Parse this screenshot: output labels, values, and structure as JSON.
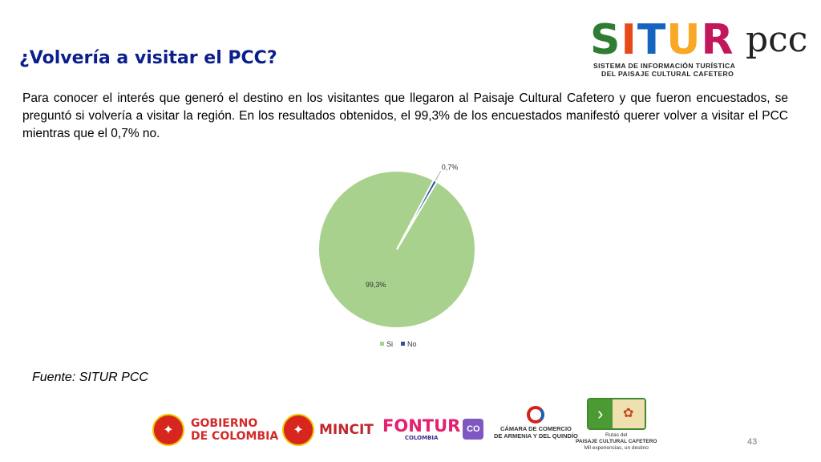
{
  "slide": {
    "title": "¿Volvería a visitar el PCC?",
    "paragraph": "Para conocer el interés que generó el destino en los visitantes que llegaron al Paisaje Cultural Cafetero y que fueron encuestados, se preguntó si volvería a visitar la región. En los resultados obtenidos, el 99,3% de los encuestados manifestó querer volver a visitar el PCC mientras que el 0,7% no.",
    "source": "Fuente: SITUR PCC",
    "page_number": "43"
  },
  "header_logo": {
    "brand": "SITUR",
    "brand_suffix": "pcc",
    "line1": "SISTEMA DE INFORMACIÓN TURÍSTICA",
    "line2": "DEL PAISAJE CULTURAL CAFETERO",
    "letter_colors": [
      "#2e7d32",
      "#e64a19",
      "#1565c0",
      "#f9a825",
      "#c2185b"
    ]
  },
  "chart_data": {
    "type": "pie",
    "categories": [
      "Si",
      "No"
    ],
    "values": [
      99.3,
      0.7
    ],
    "labels": [
      "99,3%",
      "0,7%"
    ],
    "colors": [
      "#a9d18e",
      "#2f5597"
    ],
    "legend": "bottom"
  },
  "footer_logos": {
    "gobierno": {
      "line1": "GOBIERNO",
      "line2": "DE COLOMBIA"
    },
    "mincit": "MINCIT",
    "fontur": {
      "name": "FONTUR",
      "sub": "COLOMBIA",
      "badge": "CO"
    },
    "camara": {
      "line1": "CÁMARA DE COMERCIO",
      "line2": "DE ARMENIA Y DEL QUINDÍO"
    },
    "rutas": {
      "line1": "Rutas del",
      "line2": "PAISAJE CULTURAL CAFETERO",
      "line3": "Mil experiencias, un destino"
    }
  }
}
